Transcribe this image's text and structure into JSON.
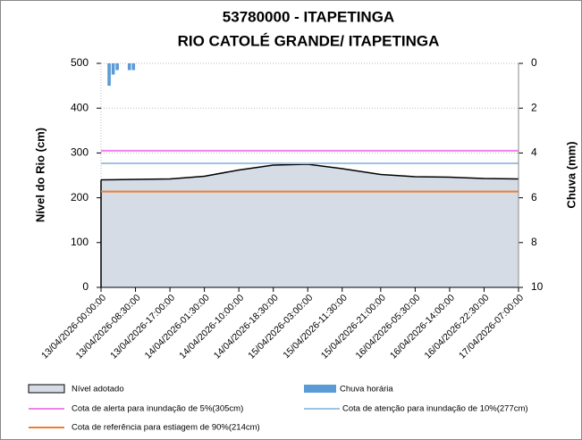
{
  "chart_data": {
    "type": "area",
    "title": "53780000 - ITAPETINGA",
    "subtitle": "RIO CATOLÉ GRANDE/ ITAPETINGA",
    "ylabel": "Nível do Rio  (cm)",
    "y2label": "Chuva (mm)",
    "categories": [
      "13/04/2026-00:00:00",
      "13/04/2026-08:30:00",
      "13/04/2026-17:00:00",
      "14/04/2026-01:30:00",
      "14/04/2026-10:00:00",
      "14/04/2026-18:30:00",
      "15/04/2026-03:00:00",
      "15/04/2026-11:30:00",
      "15/04/2026-21:00:00",
      "16/04/2026-05:30:00",
      "16/04/2026-14:00:00",
      "16/04/2026-22:30:00",
      "17/04/2026-07:00:00"
    ],
    "series": [
      {
        "name": "Nível adotado",
        "color": "#d6dce6",
        "values": [
          240,
          241,
          242,
          248,
          262,
          273,
          275,
          265,
          252,
          247,
          246,
          243,
          242
        ]
      },
      {
        "name": "Chuva horária",
        "color": "#5b9bd5",
        "axis": "y2",
        "x": [
          "13/04/2026-02:00:00",
          "13/04/2026-03:00:00",
          "13/04/2026-04:00:00",
          "13/04/2026-07:00:00",
          "13/04/2026-08:00:00"
        ],
        "values": [
          1.0,
          0.5,
          0.3,
          0.3,
          0.3
        ]
      }
    ],
    "reference_lines": [
      {
        "name": "Cota de alerta para inundação de 5%(305cm)",
        "color": "#ee82ee",
        "value": 305
      },
      {
        "name": "Cota de atenção para inundação de 10%(277cm)",
        "color": "#9dc3e6",
        "value": 277
      },
      {
        "name": "Cota de referência para estiagem de 90%(214cm)",
        "color": "#ed7d31",
        "value": 214
      }
    ],
    "ylim": [
      0,
      500
    ],
    "yticks": [
      0,
      100,
      200,
      300,
      400,
      500
    ],
    "y2lim": [
      0,
      10
    ],
    "y2ticks": [
      0,
      2,
      4,
      6,
      8,
      10
    ],
    "y2_inverted": true,
    "grid": true
  }
}
